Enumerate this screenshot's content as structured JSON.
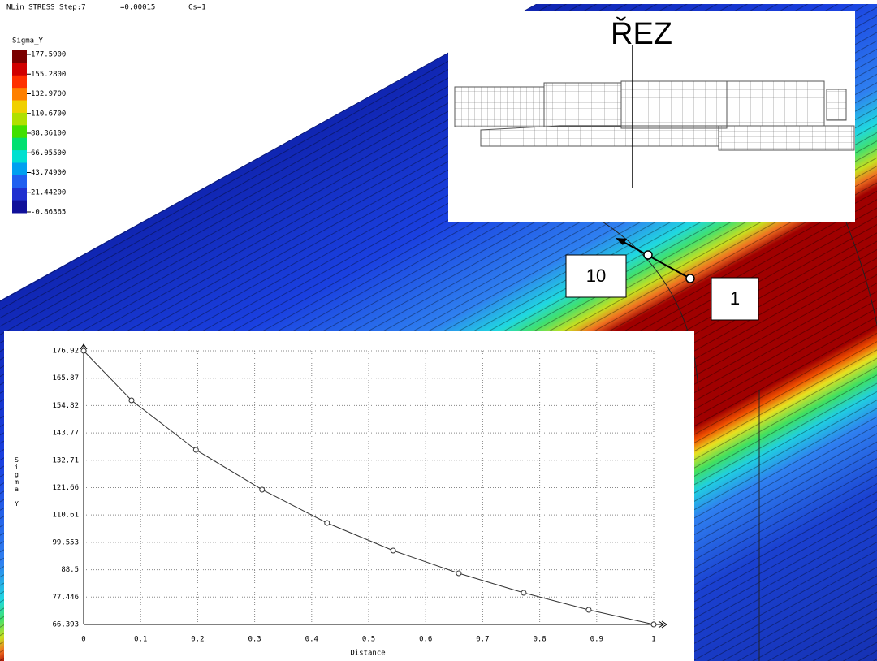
{
  "header": {
    "step": "NLin STRESS Step:7",
    "strain": "=0.00015",
    "cs": "Cs=1"
  },
  "legend": {
    "title": "Sigma_Y",
    "labels": [
      "177.5900",
      "155.2800",
      "132.9700",
      "110.6700",
      "88.36100",
      "66.05500",
      "43.74900",
      "21.44200",
      "-0.86365"
    ],
    "colors": [
      "#7a0000",
      "#d00000",
      "#ff3000",
      "#ff8000",
      "#f0d000",
      "#b0e000",
      "#40e000",
      "#00e070",
      "#00e0d0",
      "#00a0f0",
      "#2060f0",
      "#2030d0",
      "#10109a"
    ]
  },
  "section_view": {
    "title": "ŘEZ"
  },
  "callouts": [
    "10",
    "1"
  ],
  "chart_data": {
    "type": "line",
    "x_label": "Distance",
    "y_label": "Sigma Y",
    "color": "#333333",
    "x": [
      0,
      0.084,
      0.197,
      0.313,
      0.427,
      0.543,
      0.658,
      0.772,
      0.886,
      1.0
    ],
    "values": [
      176.92,
      156.91,
      136.91,
      120.84,
      107.39,
      96.24,
      87.06,
      79.19,
      72.3,
      66.393
    ],
    "xlim": [
      0,
      1
    ],
    "ylim": [
      66.393,
      176.92
    ],
    "xticks": [
      0,
      0.1,
      0.2,
      0.3,
      0.4,
      0.5,
      0.6,
      0.7,
      0.8,
      0.9,
      1
    ],
    "yticks": [
      66.393,
      77.446,
      88.5,
      99.553,
      110.61,
      121.66,
      132.71,
      143.77,
      154.82,
      165.87,
      176.92
    ],
    "grid": true
  }
}
